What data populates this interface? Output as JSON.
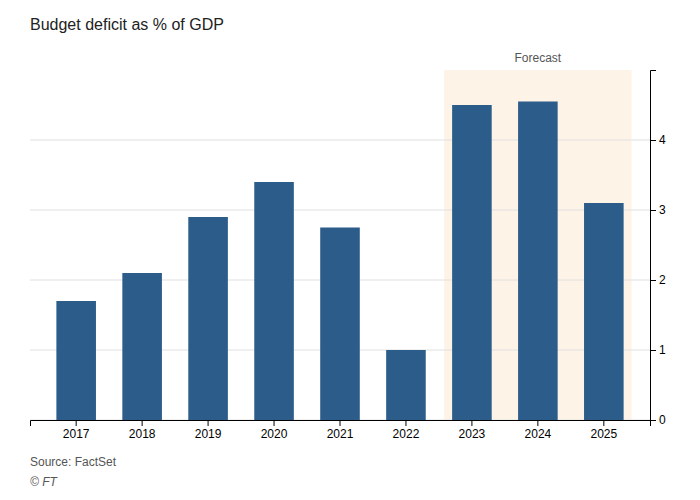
{
  "chart_data": {
    "type": "bar",
    "title": "Budget deficit as % of GDP",
    "categories": [
      "2017",
      "2018",
      "2019",
      "2020",
      "2021",
      "2022",
      "2023",
      "2024",
      "2025"
    ],
    "values": [
      1.7,
      2.1,
      2.9,
      3.4,
      2.75,
      1.0,
      4.5,
      4.55,
      3.1
    ],
    "color": "#2b5c8a",
    "ylim": [
      0,
      5.0
    ],
    "yticks": [
      0,
      1,
      2,
      3,
      4
    ],
    "grid": true,
    "annotations": [
      {
        "text": "Forecast",
        "x_start": "2023",
        "x_end": "2025",
        "color": "#fdf3e7"
      }
    ],
    "source": "Source: FactSet",
    "credit": "© FT"
  }
}
